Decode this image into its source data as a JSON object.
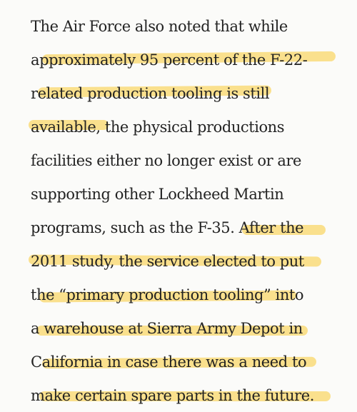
{
  "article": {
    "lines": [
      "The Air Force also noted that while",
      "approximately 95 percent of the F-22-",
      "related production tooling is still",
      "available, the physical productions",
      "facilities either no longer exist or are",
      "supporting other Lockheed Martin",
      "programs, such as the F-35. After the",
      "2011 study, the service elected to put",
      "the “primary production tooling” into",
      "a warehouse at Sierra Army Depot in",
      "California in case there was a need to",
      "make certain spare parts in the future."
    ]
  },
  "highlight": {
    "color": "#fad662"
  }
}
